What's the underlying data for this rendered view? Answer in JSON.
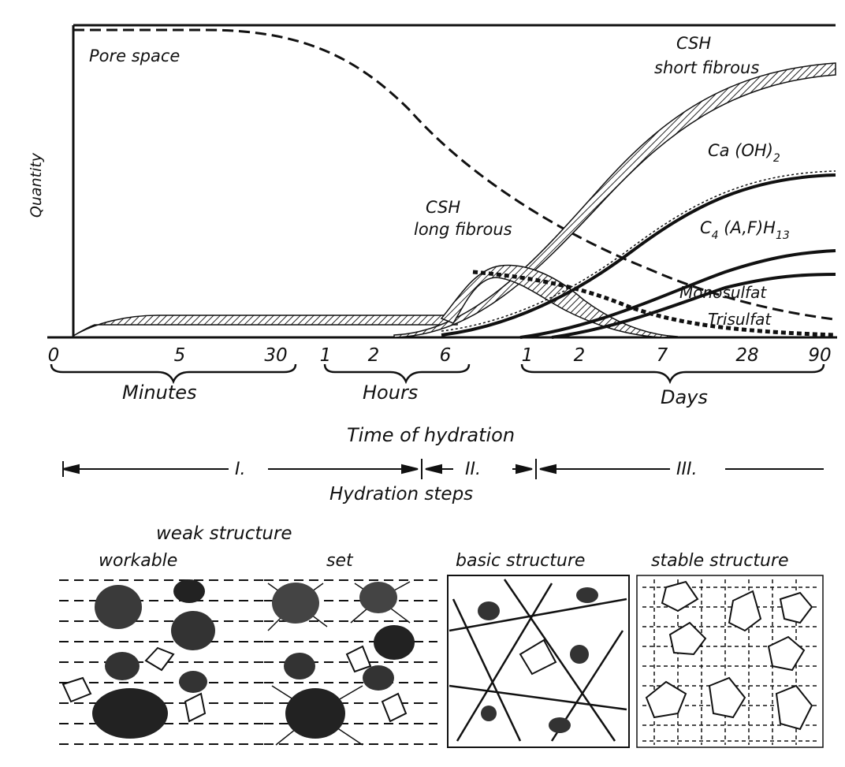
{
  "chart": {
    "ylabel": "Quantity",
    "pore_space": "Pore space",
    "curves": {
      "csh_short_line1": "CSH",
      "csh_short_line2": "short fibrous",
      "caoh2": "Ca (OH)",
      "caoh2_sub": "2",
      "c4afh_pre": "C",
      "c4afh_sub1": "4",
      "c4afh_mid": " (A,F)H",
      "c4afh_sub2": "13",
      "csh_long_line1": "CSH",
      "csh_long_line2": "long fibrous",
      "monosulfat": "Monosulfat",
      "trisulfat": "Trisulfat"
    },
    "ticks": [
      "0",
      "5",
      "30",
      "1",
      "2",
      "6",
      "1",
      "2",
      "7",
      "28",
      "90"
    ],
    "groups": {
      "minutes": "Minutes",
      "hours": "Hours",
      "days": "Days"
    },
    "xlabel": "Time of hydration"
  },
  "steps": {
    "step1": "I.",
    "step2": "II.",
    "step3": "III.",
    "label": "Hydration steps"
  },
  "structure": {
    "weak": "weak structure",
    "panels": [
      "workable",
      "set",
      "basic structure",
      "stable structure"
    ]
  }
}
